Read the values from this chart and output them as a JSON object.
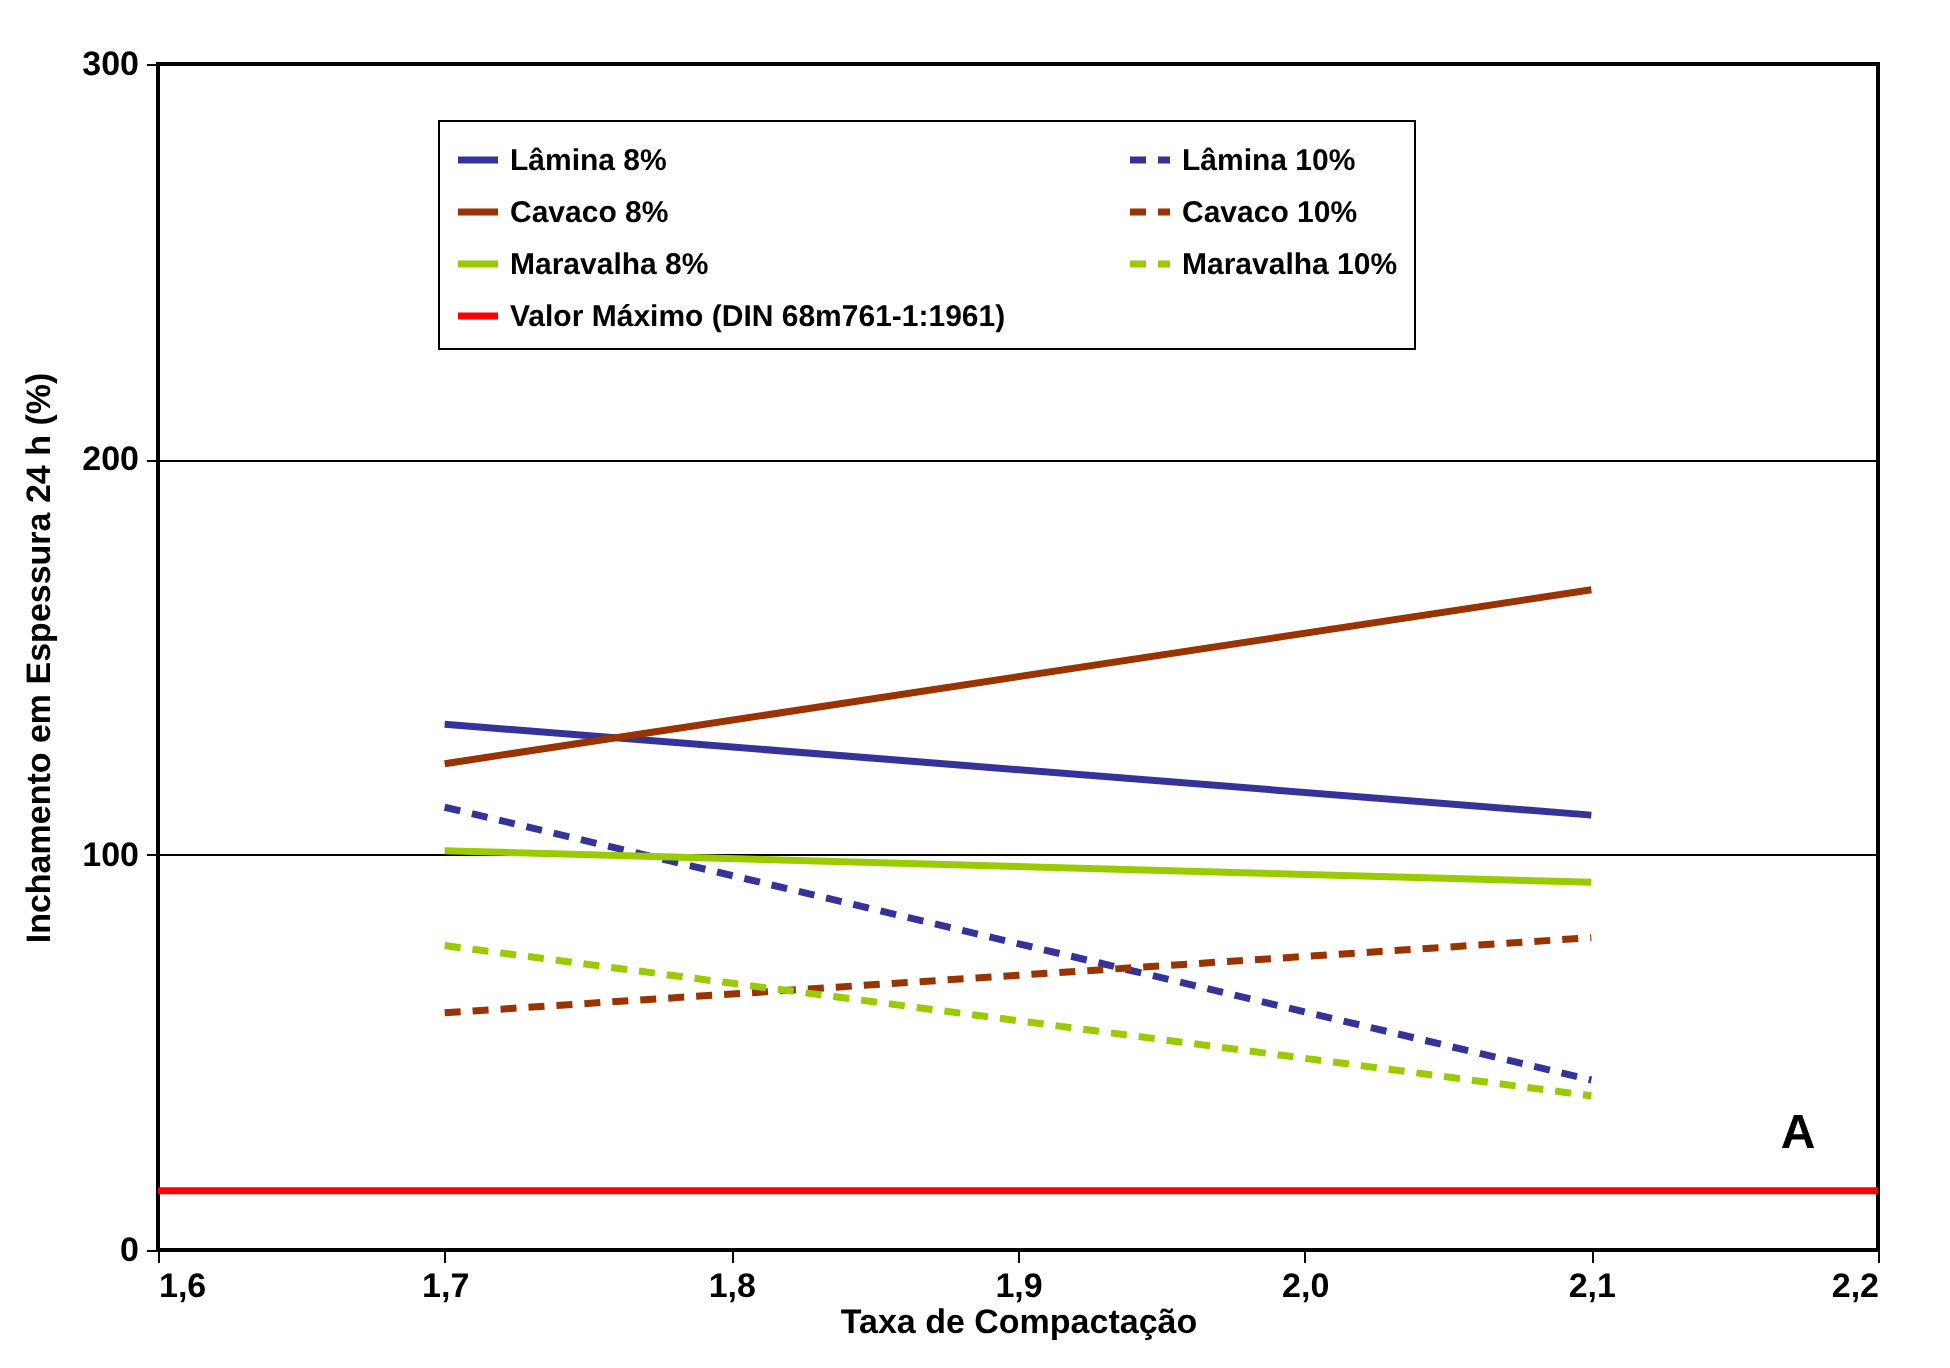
{
  "chart_data": {
    "type": "line",
    "xlabel": "Taxa de Compactação",
    "ylabel": "Inchamento em Espessura 24 h (%)",
    "x": [
      1.7,
      2.1
    ],
    "series": [
      {
        "name": "Lâmina 8%",
        "color": "#333399",
        "line_style": "solid",
        "values": [
          133,
          110
        ]
      },
      {
        "name": "Lâmina 10%",
        "color": "#333399",
        "line_style": "dashed",
        "values": [
          112,
          43
        ]
      },
      {
        "name": "Cavaco 8%",
        "color": "#993300",
        "line_style": "solid",
        "values": [
          123,
          167
        ]
      },
      {
        "name": "Cavaco 10%",
        "color": "#993300",
        "line_style": "dashed",
        "values": [
          60,
          79
        ]
      },
      {
        "name": "Maravalha 8%",
        "color": "#99cc00",
        "line_style": "solid",
        "values": [
          101,
          93
        ]
      },
      {
        "name": "Maravalha 10%",
        "color": "#99cc00",
        "line_style": "dashed",
        "values": [
          77,
          39
        ]
      },
      {
        "name": "Valor Máximo (DIN 68m761-1:1961)",
        "color": "#ff0000",
        "line_style": "solid",
        "x": [
          1.6,
          2.2
        ],
        "values": [
          15,
          15
        ]
      }
    ],
    "xlim": [
      1.6,
      2.2
    ],
    "xticks": [
      {
        "value": 1.6,
        "label": "1,6"
      },
      {
        "value": 1.7,
        "label": "1,7"
      },
      {
        "value": 1.8,
        "label": "1,8"
      },
      {
        "value": 1.9,
        "label": "1,9"
      },
      {
        "value": 2.0,
        "label": "2,0"
      },
      {
        "value": 2.1,
        "label": "2,1"
      },
      {
        "value": 2.2,
        "label": "2,2"
      }
    ],
    "ylim": [
      0,
      300
    ],
    "yticks": [
      0,
      100,
      200,
      300
    ],
    "grid": "y",
    "legend": "top",
    "marker": "none",
    "annotations": [
      "A"
    ]
  }
}
